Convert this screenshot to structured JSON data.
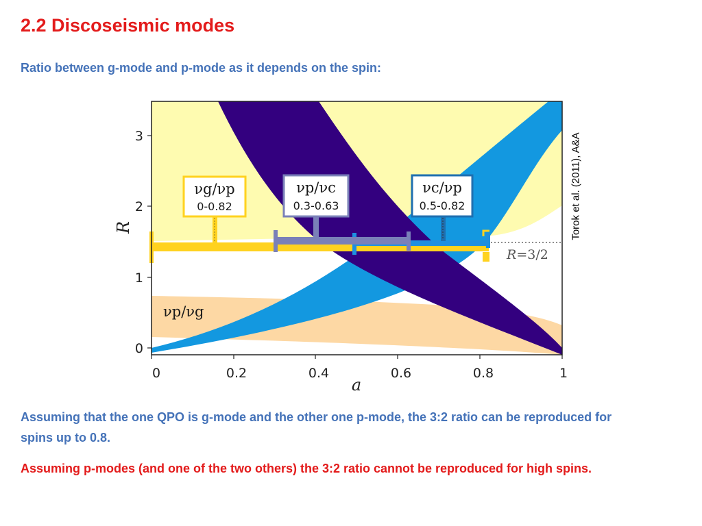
{
  "slide": {
    "title": "2.2 Discoseismic modes",
    "subtitle": "Ratio between g-mode and p-mode as it depends on the spin:",
    "paragraph_blue": "Assuming that the one QPO is g-mode and the other one p-mode, the 3:2 ratio can be reproduced for spins up to 0.8.",
    "paragraph_red": "Assuming p-modes (and one of the two others) the 3:2 ratio cannot be reproduced for high spins.",
    "credit": "Torok et al. (2011), A&A"
  },
  "figure": {
    "x_var": "a",
    "y_var": "R",
    "x_ticks": [
      "0",
      "0.2",
      "0.4",
      "0.6",
      "0.8",
      "1"
    ],
    "y_ticks": [
      "0",
      "1",
      "2",
      "3"
    ],
    "line_label_prefix": "R",
    "line_label_value": "=3/2",
    "band_label_nu_p_nu_g": "νp/νg",
    "box_gp": {
      "name": "νg/νp",
      "range": "0-0.82"
    },
    "box_pc": {
      "name": "νp/νc",
      "range": "0.3-0.63"
    },
    "box_cp": {
      "name": "νc/νp",
      "range": "0.5-0.82"
    }
  },
  "chart_data": {
    "type": "area",
    "xlabel": "a",
    "ylabel": "R",
    "xlim": [
      0,
      1
    ],
    "ylim": [
      0,
      3.45
    ],
    "reference_line": {
      "y": 1.5,
      "label": "R=3/2"
    },
    "series": [
      {
        "name": "νg/νp",
        "color": "#fefbb0",
        "spin_range": [
          0,
          0.82
        ]
      },
      {
        "name": "νp/νc",
        "color": "#33007f",
        "spin_range": [
          0.3,
          0.63
        ]
      },
      {
        "name": "νc/νp",
        "color": "#1398e0",
        "spin_range": [
          0.5,
          0.82
        ]
      },
      {
        "name": "νp/νg",
        "color": "#fdd8a4"
      }
    ],
    "range_bars": [
      {
        "label": "νg/νp",
        "from": 0,
        "to": 0.82,
        "color": "#ffd21f"
      },
      {
        "label": "νp/νc",
        "from": 0.3,
        "to": 0.63,
        "color": "#7a80b8"
      },
      {
        "label": "νc/νp",
        "from": 0.5,
        "to": 0.82,
        "color": "#1e8fe0"
      }
    ]
  }
}
